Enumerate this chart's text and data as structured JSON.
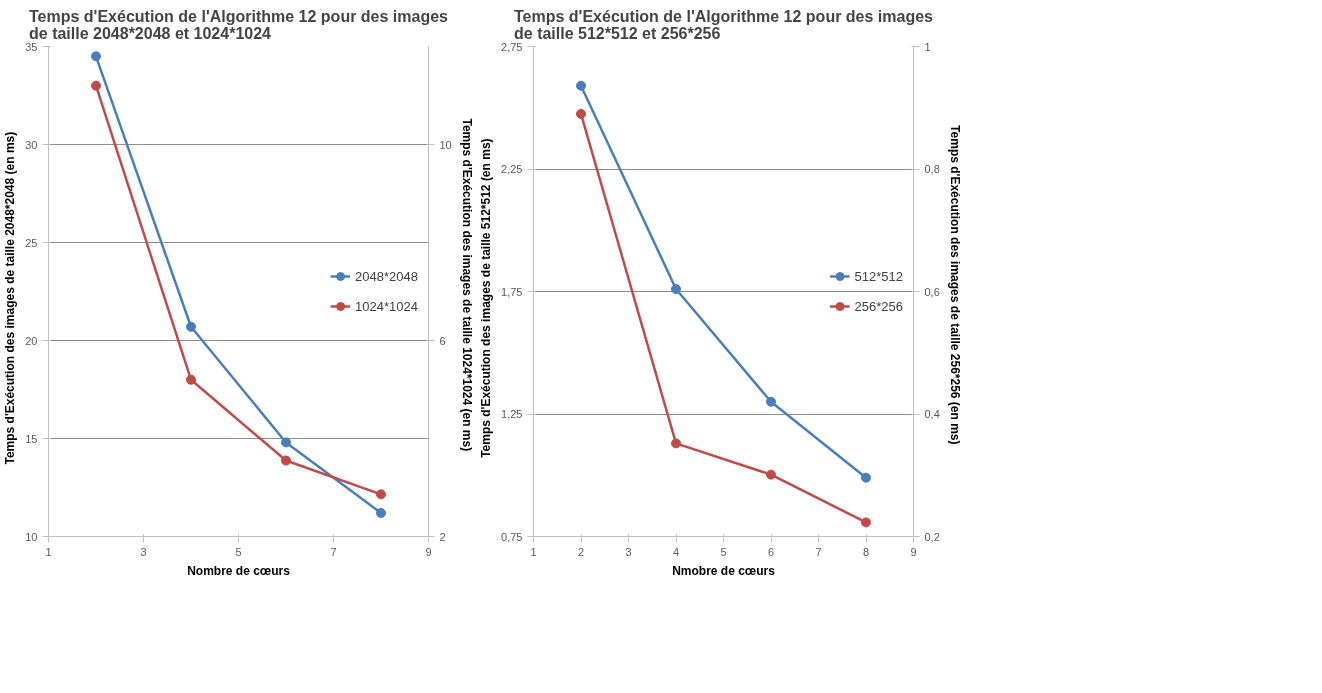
{
  "chart_data": [
    {
      "type": "line",
      "title": "Temps d'Exécution de l'Algorithme 12 pour des images\nde taille 2048*2048 et 1024*1024",
      "xlabel": "Nombre de cœurs",
      "ylabel": "Temps d'Exécution  des images  de taille 2048*2048   (en ms)",
      "y2label": "Temps d'Exécution  des images  de taille 1024*1024   (en ms)",
      "x": [
        2,
        4,
        6,
        8
      ],
      "xlim": [
        1,
        9
      ],
      "xticks": [
        1,
        3,
        5,
        7,
        9
      ],
      "ylim": [
        10,
        35
      ],
      "yticks": [
        10,
        15,
        20,
        25,
        30,
        35
      ],
      "y2lim": [
        2,
        12
      ],
      "y2ticks": [
        2,
        6,
        10
      ],
      "grid": "y",
      "legend": "right",
      "marker": "circle",
      "line_style": "solid",
      "series": [
        {
          "name": "2048*2048",
          "color": "#4a7ebb",
          "values": [
            34.5,
            20.7,
            14.8,
            11.2
          ]
        },
        {
          "name": "1024*1024",
          "color": "#be4b48",
          "axis": "y2",
          "values": [
            11.2,
            5.2,
            3.55,
            2.86
          ]
        }
      ]
    },
    {
      "type": "line",
      "title": "Temps d'Exécution de l'Algorithme 12 pour des images\nde taille 512*512 et 256*256",
      "xlabel": "Nmobre de cœurs",
      "ylabel": "Temps d'Exécution  des images  de taille 512*512   (en ms)",
      "y2label": "Temps d'Exécution  des images  de taille 256*256   (en ms)",
      "x": [
        2,
        4,
        6,
        8
      ],
      "xlim": [
        1,
        9
      ],
      "xticks": [
        1,
        2,
        3,
        4,
        5,
        6,
        7,
        8,
        9
      ],
      "ylim": [
        0.75,
        2.75
      ],
      "yticks": [
        {
          "value": 0.75,
          "label": "0,75"
        },
        {
          "value": 1.25,
          "label": "1,25"
        },
        {
          "value": 1.75,
          "label": "1,75"
        },
        {
          "value": 2.25,
          "label": "2,25"
        },
        {
          "value": 2.75,
          "label": "2,75"
        }
      ],
      "y2lim": [
        0.2,
        1
      ],
      "y2ticks": [
        {
          "value": 0.2,
          "label": "0,2"
        },
        {
          "value": 0.4,
          "label": "0,4"
        },
        {
          "value": 0.6,
          "label": "0,6"
        },
        {
          "value": 0.8,
          "label": "0,8"
        },
        1
      ],
      "grid": "y",
      "legend": "right",
      "marker": "circle",
      "line_style": "solid",
      "series": [
        {
          "name": "512*512",
          "color": "#4a7ebb",
          "values": [
            2.59,
            1.76,
            1.3,
            0.99
          ]
        },
        {
          "name": "256*256",
          "color": "#be4b48",
          "axis": "y2",
          "values": [
            0.89,
            0.352,
            0.301,
            0.223
          ]
        }
      ]
    }
  ]
}
